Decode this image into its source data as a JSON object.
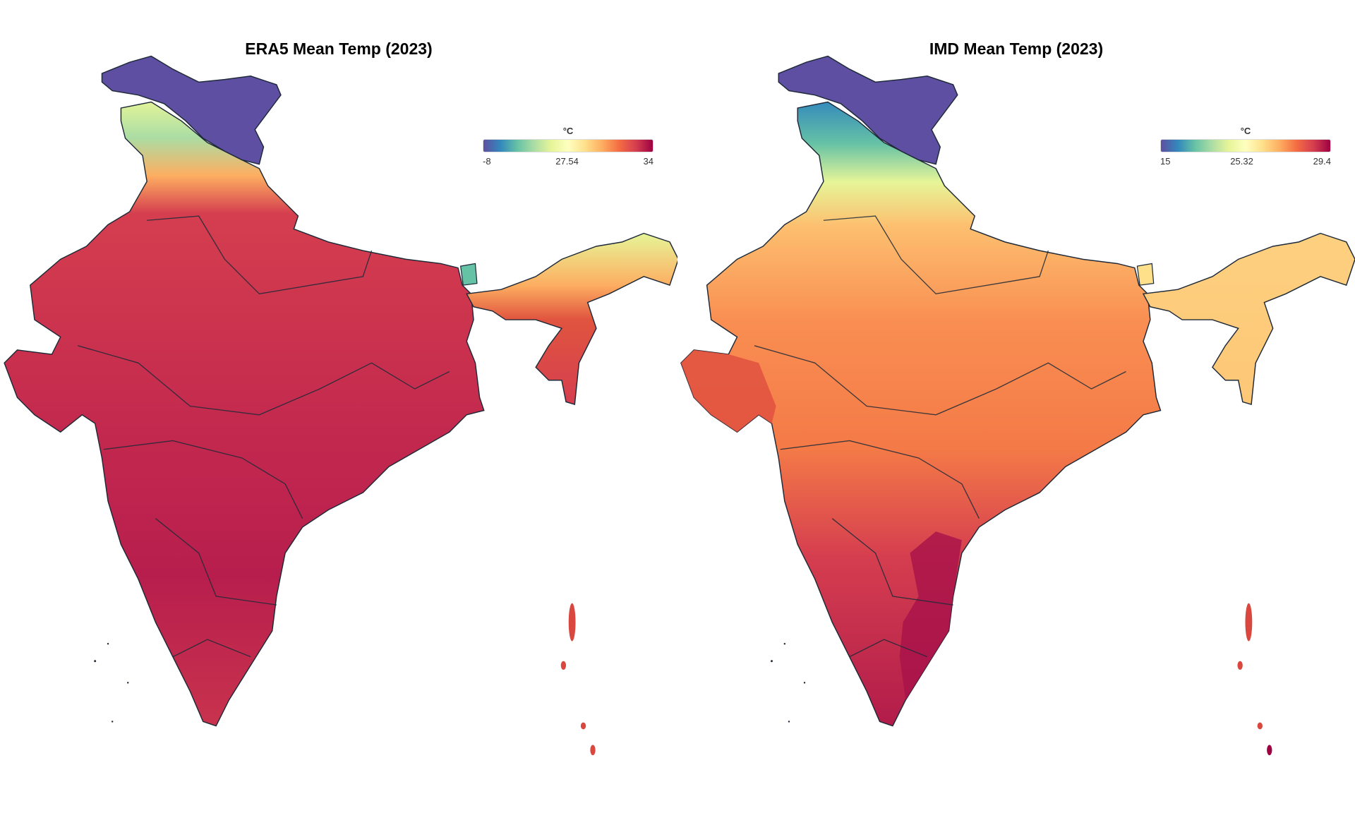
{
  "chart_data": [
    {
      "type": "heatmap",
      "subtype": "choropleth-map",
      "title": "ERA5 Mean Temp (2023)",
      "legend": {
        "unit": "°C",
        "min": -8,
        "mid": 27.54,
        "max": 34,
        "labels": [
          "-8",
          "27.54",
          "34"
        ],
        "colorscale": "Spectral (reversed)",
        "placement": "top-right"
      },
      "pattern": "Kashmir/Ladakh coldest (blue), Himalayan districts green-yellow, plains and peninsula mostly red (~31-34 °C)"
    },
    {
      "type": "heatmap",
      "subtype": "choropleth-map",
      "title": "IMD Mean Temp (2023)",
      "legend": {
        "unit": "°C",
        "min": 15,
        "mid": 25.32,
        "max": 29.4,
        "labels": [
          "15",
          "25.32",
          "29.4"
        ],
        "colorscale": "Spectral (reversed)",
        "placement": "top-right"
      },
      "pattern": "Ladakh/Kashmir blue, Himalaya green-yellow, plains orange, south-east coast darkest red"
    }
  ],
  "colors": {
    "cold": "#5e4fa2",
    "mid": "#ffffbf",
    "hot": "#9e0142",
    "border": "#1f2a38"
  }
}
